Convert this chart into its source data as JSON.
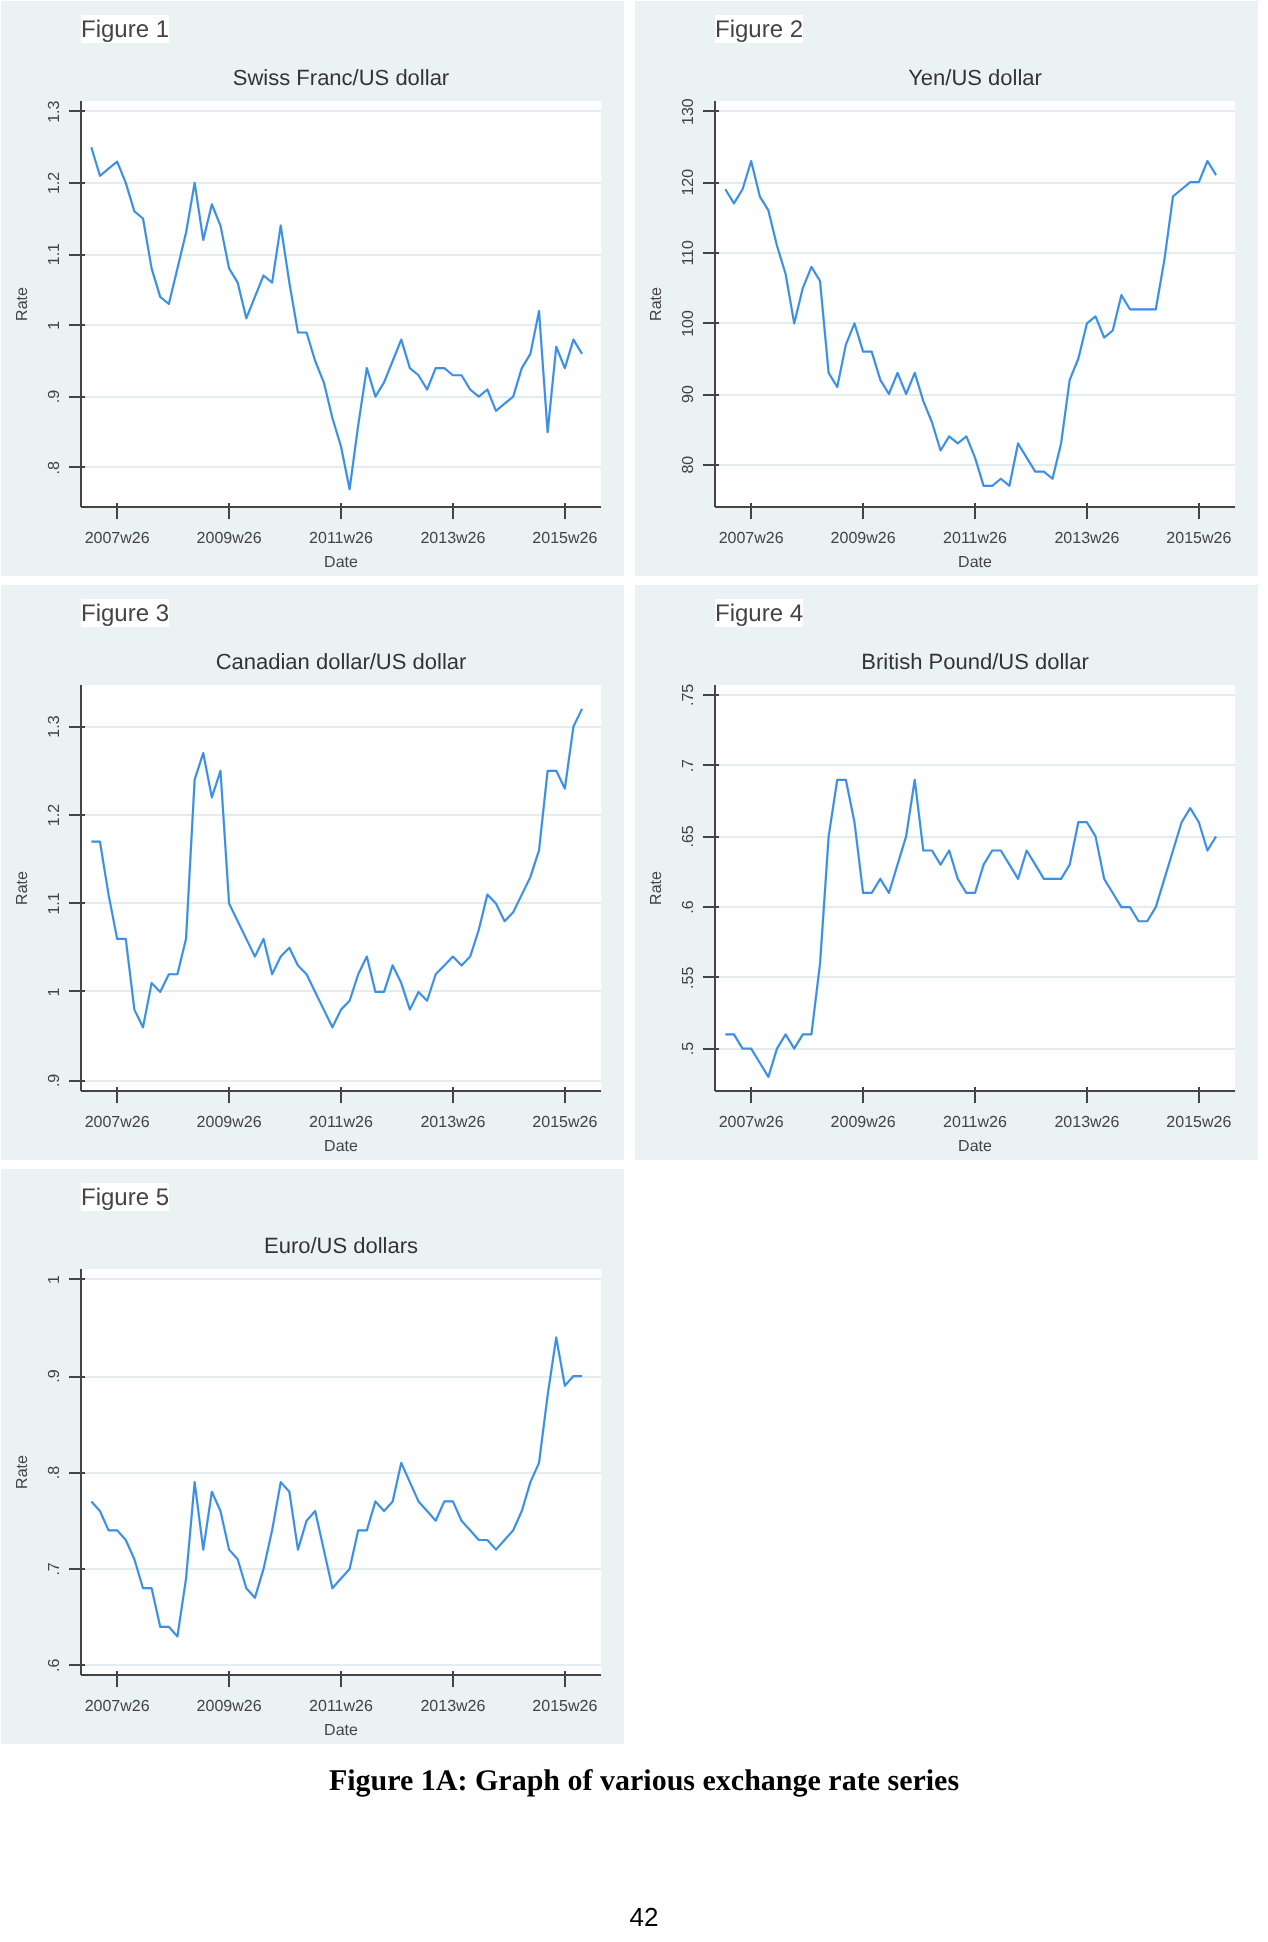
{
  "chart_data": [
    {
      "type": "line",
      "title": "Swiss Franc/US dollar",
      "xlabel": "Date",
      "ylabel": "Rate",
      "annotations": [
        "Figure 1"
      ],
      "grid": "y",
      "categories": [
        null,
        null,
        null,
        "2007w26",
        null,
        null,
        null,
        null,
        null,
        null,
        null,
        null,
        null,
        null,
        null,
        null,
        "2009w26",
        null,
        null,
        null,
        null,
        null,
        null,
        null,
        null,
        null,
        null,
        null,
        null,
        "2011w26",
        null,
        null,
        null,
        null,
        null,
        null,
        null,
        null,
        null,
        null,
        null,
        null,
        "2013w26",
        null,
        null,
        null,
        null,
        null,
        null,
        null,
        null,
        null,
        null,
        null,
        null,
        "2015w26",
        null,
        null
      ],
      "series": [
        {
          "color": "#3a8fe6",
          "values": [
            1.25,
            1.21,
            1.22,
            1.23,
            1.2,
            1.16,
            1.15,
            1.08,
            1.04,
            1.03,
            1.08,
            1.13,
            1.2,
            1.12,
            1.17,
            1.14,
            1.08,
            1.06,
            1.01,
            1.04,
            1.07,
            1.06,
            1.14,
            1.06,
            0.99,
            0.99,
            0.95,
            0.92,
            0.87,
            0.83,
            0.77,
            0.86,
            0.94,
            0.9,
            0.92,
            0.95,
            0.98,
            0.94,
            0.93,
            0.91,
            0.94,
            0.94,
            0.93,
            0.93,
            0.91,
            0.9,
            0.91,
            0.88,
            0.89,
            0.9,
            0.94,
            0.96,
            1.02,
            0.85,
            0.97,
            0.94,
            0.98,
            0.96
          ]
        }
      ],
      "ylim": [
        0.745,
        1.315
      ],
      "yticks": [
        {
          "value": 0.8,
          "label": ".8"
        },
        {
          "value": 0.9,
          "label": ".9"
        },
        1,
        1.1,
        1.2,
        1.3
      ]
    },
    {
      "type": "line",
      "title": "Yen/US dollar",
      "xlabel": "Date",
      "ylabel": "Rate",
      "annotations": [
        "Figure 2"
      ],
      "grid": "y",
      "categories": [
        null,
        null,
        null,
        "2007w26",
        null,
        null,
        null,
        null,
        null,
        null,
        null,
        null,
        null,
        null,
        null,
        null,
        "2009w26",
        null,
        null,
        null,
        null,
        null,
        null,
        null,
        null,
        null,
        null,
        null,
        null,
        "2011w26",
        null,
        null,
        null,
        null,
        null,
        null,
        null,
        null,
        null,
        null,
        null,
        null,
        "2013w26",
        null,
        null,
        null,
        null,
        null,
        null,
        null,
        null,
        null,
        null,
        null,
        null,
        "2015w26",
        null,
        null
      ],
      "series": [
        {
          "color": "#3a8fe6",
          "values": [
            119,
            117,
            119,
            123,
            118,
            116,
            111,
            107,
            100,
            105,
            108,
            106,
            93,
            91,
            97,
            100,
            96,
            96,
            92,
            90,
            93,
            90,
            93,
            89,
            86,
            82,
            84,
            83,
            84,
            81,
            77,
            77,
            78,
            77,
            83,
            81,
            79,
            79,
            78,
            83,
            92,
            95,
            100,
            101,
            98,
            99,
            104,
            102,
            102,
            102,
            102,
            109,
            118,
            119,
            120,
            120,
            123,
            121
          ]
        }
      ],
      "ylim": [
        74,
        131.5
      ],
      "yticks": [
        80,
        90,
        100,
        110,
        120,
        130
      ]
    },
    {
      "type": "line",
      "title": "Canadian dollar/US dollar",
      "xlabel": "Date",
      "ylabel": "Rate",
      "annotations": [
        "Figure 3"
      ],
      "grid": "y",
      "categories": [
        null,
        null,
        null,
        "2007w26",
        null,
        null,
        null,
        null,
        null,
        null,
        null,
        null,
        null,
        null,
        null,
        null,
        "2009w26",
        null,
        null,
        null,
        null,
        null,
        null,
        null,
        null,
        null,
        null,
        null,
        null,
        "2011w26",
        null,
        null,
        null,
        null,
        null,
        null,
        null,
        null,
        null,
        null,
        null,
        null,
        "2013w26",
        null,
        null,
        null,
        null,
        null,
        null,
        null,
        null,
        null,
        null,
        null,
        null,
        "2015w26",
        null,
        null
      ],
      "series": [
        {
          "color": "#3a8fe6",
          "values": [
            1.17,
            1.17,
            1.11,
            1.06,
            1.06,
            0.98,
            0.96,
            1.01,
            1.0,
            1.02,
            1.02,
            1.06,
            1.24,
            1.27,
            1.22,
            1.25,
            1.1,
            1.08,
            1.06,
            1.04,
            1.06,
            1.02,
            1.04,
            1.05,
            1.03,
            1.02,
            1.0,
            0.98,
            0.96,
            0.98,
            0.99,
            1.02,
            1.04,
            1.0,
            1.0,
            1.03,
            1.01,
            0.98,
            1.0,
            0.99,
            1.02,
            1.03,
            1.04,
            1.03,
            1.04,
            1.07,
            1.11,
            1.1,
            1.08,
            1.09,
            1.11,
            1.13,
            1.16,
            1.25,
            1.25,
            1.23,
            1.3,
            1.32
          ]
        }
      ],
      "ylim": [
        0.888,
        1.347
      ],
      "yticks": [
        {
          "value": 0.9,
          "label": ".9"
        },
        1,
        1.1,
        1.2,
        1.3
      ]
    },
    {
      "type": "line",
      "title": "British Pound/US dollar",
      "xlabel": "Date",
      "ylabel": "Rate",
      "annotations": [
        "Figure 4"
      ],
      "grid": "y",
      "categories": [
        null,
        null,
        null,
        "2007w26",
        null,
        null,
        null,
        null,
        null,
        null,
        null,
        null,
        null,
        null,
        null,
        null,
        "2009w26",
        null,
        null,
        null,
        null,
        null,
        null,
        null,
        null,
        null,
        null,
        null,
        null,
        "2011w26",
        null,
        null,
        null,
        null,
        null,
        null,
        null,
        null,
        null,
        null,
        null,
        null,
        "2013w26",
        null,
        null,
        null,
        null,
        null,
        null,
        null,
        null,
        null,
        null,
        null,
        null,
        "2015w26",
        null,
        null
      ],
      "series": [
        {
          "color": "#3a8fe6",
          "values": [
            0.51,
            0.51,
            0.5,
            0.5,
            0.49,
            0.48,
            0.5,
            0.51,
            0.5,
            0.51,
            0.51,
            0.56,
            0.65,
            0.69,
            0.69,
            0.66,
            0.61,
            0.61,
            0.62,
            0.61,
            0.63,
            0.65,
            0.69,
            0.64,
            0.64,
            0.63,
            0.64,
            0.62,
            0.61,
            0.61,
            0.63,
            0.64,
            0.64,
            0.63,
            0.62,
            0.64,
            0.63,
            0.62,
            0.62,
            0.62,
            0.63,
            0.66,
            0.66,
            0.65,
            0.62,
            0.61,
            0.6,
            0.6,
            0.59,
            0.59,
            0.6,
            0.62,
            0.64,
            0.66,
            0.67,
            0.66,
            0.64,
            0.65
          ]
        }
      ],
      "ylim": [
        0.47,
        0.757
      ],
      "yticks": [
        {
          "value": 0.5,
          "label": ".5"
        },
        {
          "value": 0.55,
          "label": ".55"
        },
        {
          "value": 0.6,
          "label": ".6"
        },
        {
          "value": 0.65,
          "label": ".65"
        },
        {
          "value": 0.7,
          "label": ".7"
        },
        {
          "value": 0.75,
          "label": ".75"
        }
      ]
    },
    {
      "type": "line",
      "title": "Euro/US dollars",
      "xlabel": "Date",
      "ylabel": "Rate",
      "annotations": [
        "Figure 5",
        "Figure 1A: Graph of various exchange rate series",
        "42"
      ],
      "grid": "y",
      "categories": [
        null,
        null,
        null,
        "2007w26",
        null,
        null,
        null,
        null,
        null,
        null,
        null,
        null,
        null,
        null,
        null,
        null,
        "2009w26",
        null,
        null,
        null,
        null,
        null,
        null,
        null,
        null,
        null,
        null,
        null,
        null,
        "2011w26",
        null,
        null,
        null,
        null,
        null,
        null,
        null,
        null,
        null,
        null,
        null,
        null,
        "2013w26",
        null,
        null,
        null,
        null,
        null,
        null,
        null,
        null,
        null,
        null,
        null,
        null,
        "2015w26",
        null,
        null
      ],
      "series": [
        {
          "color": "#3a8fe6",
          "values": [
            0.77,
            0.76,
            0.74,
            0.74,
            0.73,
            0.71,
            0.68,
            0.68,
            0.64,
            0.64,
            0.63,
            0.69,
            0.79,
            0.72,
            0.78,
            0.76,
            0.72,
            0.71,
            0.68,
            0.67,
            0.7,
            0.74,
            0.79,
            0.78,
            0.72,
            0.75,
            0.76,
            0.72,
            0.68,
            0.69,
            0.7,
            0.74,
            0.74,
            0.77,
            0.76,
            0.77,
            0.81,
            0.79,
            0.77,
            0.76,
            0.75,
            0.77,
            0.77,
            0.75,
            0.74,
            0.73,
            0.73,
            0.72,
            0.73,
            0.74,
            0.76,
            0.79,
            0.81,
            0.88,
            0.94,
            0.89,
            0.9,
            0.9
          ]
        }
      ],
      "ylim": [
        0.59,
        1.011
      ],
      "yticks": [
        {
          "value": 0.6,
          "label": ".6"
        },
        {
          "value": 0.7,
          "label": ".7"
        },
        {
          "value": 0.8,
          "label": ".8"
        },
        {
          "value": 0.9,
          "label": ".9"
        },
        1
      ]
    }
  ]
}
